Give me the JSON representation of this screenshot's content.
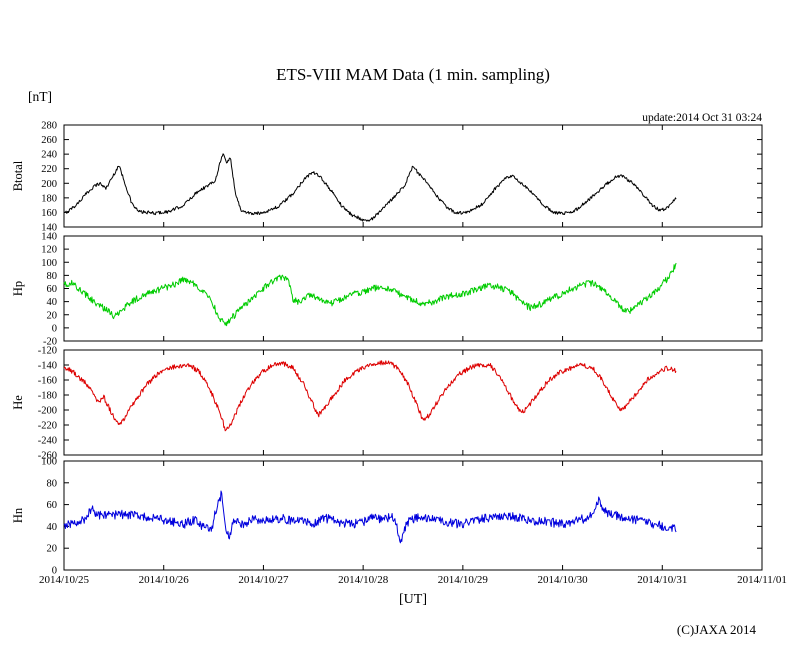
{
  "title": "ETS-VIII MAM Data (1 min. sampling)",
  "unit_label": "[nT]",
  "update_text": "update:2014 Oct 31 03:24",
  "xlabel": "[UT]",
  "copyright": "(C)JAXA 2014",
  "chart_data": {
    "type": "line",
    "title": "ETS-VIII MAM Data (1 min. sampling)",
    "x_axis_label": "[UT]",
    "x_tick_labels": [
      "2014/10/25",
      "2014/10/26",
      "2014/10/27",
      "2014/10/28",
      "2014/10/29",
      "2014/10/30",
      "2014/10/31",
      "2014/11/01"
    ],
    "x_range_days": [
      0,
      7
    ],
    "x_data_end_days": 6.14,
    "grid": false,
    "legend": "none",
    "panels": [
      {
        "name": "Btotal",
        "color": "#000000",
        "ylim": [
          140,
          280
        ],
        "yticks": [
          280,
          260,
          240,
          220,
          200,
          180,
          160,
          140
        ],
        "noise": 2.2,
        "keypoints": [
          [
            0,
            158
          ],
          [
            0.12,
            170
          ],
          [
            0.22,
            185
          ],
          [
            0.3,
            196
          ],
          [
            0.36,
            200
          ],
          [
            0.42,
            193
          ],
          [
            0.5,
            212
          ],
          [
            0.55,
            225
          ],
          [
            0.6,
            205
          ],
          [
            0.68,
            172
          ],
          [
            0.75,
            161
          ],
          [
            0.9,
            159
          ],
          [
            1.05,
            161
          ],
          [
            1.2,
            170
          ],
          [
            1.35,
            190
          ],
          [
            1.45,
            197
          ],
          [
            1.52,
            205
          ],
          [
            1.57,
            232
          ],
          [
            1.6,
            240
          ],
          [
            1.63,
            228
          ],
          [
            1.67,
            235
          ],
          [
            1.72,
            185
          ],
          [
            1.78,
            162
          ],
          [
            1.9,
            158
          ],
          [
            2.0,
            160
          ],
          [
            2.15,
            168
          ],
          [
            2.3,
            186
          ],
          [
            2.42,
            208
          ],
          [
            2.5,
            215
          ],
          [
            2.58,
            207
          ],
          [
            2.68,
            190
          ],
          [
            2.78,
            170
          ],
          [
            2.88,
            157
          ],
          [
            3.0,
            150
          ],
          [
            3.06,
            148
          ],
          [
            3.18,
            162
          ],
          [
            3.3,
            180
          ],
          [
            3.42,
            198
          ],
          [
            3.5,
            224
          ],
          [
            3.55,
            214
          ],
          [
            3.63,
            202
          ],
          [
            3.73,
            184
          ],
          [
            3.83,
            168
          ],
          [
            3.93,
            159
          ],
          [
            4.05,
            160
          ],
          [
            4.2,
            172
          ],
          [
            4.32,
            192
          ],
          [
            4.42,
            206
          ],
          [
            4.5,
            210
          ],
          [
            4.6,
            198
          ],
          [
            4.7,
            186
          ],
          [
            4.8,
            171
          ],
          [
            4.9,
            161
          ],
          [
            5.0,
            158
          ],
          [
            5.12,
            162
          ],
          [
            5.25,
            176
          ],
          [
            5.4,
            194
          ],
          [
            5.52,
            208
          ],
          [
            5.6,
            210
          ],
          [
            5.7,
            200
          ],
          [
            5.8,
            186
          ],
          [
            5.9,
            170
          ],
          [
            5.98,
            162
          ],
          [
            6.06,
            168
          ],
          [
            6.14,
            180
          ]
        ]
      },
      {
        "name": "Hp",
        "color": "#00cc00",
        "ylim": [
          -20,
          140
        ],
        "yticks": [
          140,
          120,
          100,
          80,
          60,
          40,
          20,
          0,
          -20
        ],
        "noise": 5,
        "keypoints": [
          [
            0,
            65
          ],
          [
            0.08,
            68
          ],
          [
            0.18,
            55
          ],
          [
            0.3,
            40
          ],
          [
            0.42,
            28
          ],
          [
            0.5,
            18
          ],
          [
            0.58,
            28
          ],
          [
            0.7,
            42
          ],
          [
            0.82,
            52
          ],
          [
            0.95,
            58
          ],
          [
            1.1,
            66
          ],
          [
            1.2,
            74
          ],
          [
            1.3,
            68
          ],
          [
            1.4,
            55
          ],
          [
            1.5,
            35
          ],
          [
            1.56,
            12
          ],
          [
            1.62,
            6
          ],
          [
            1.68,
            15
          ],
          [
            1.78,
            30
          ],
          [
            1.9,
            48
          ],
          [
            2.0,
            60
          ],
          [
            2.1,
            72
          ],
          [
            2.18,
            78
          ],
          [
            2.25,
            70
          ],
          [
            2.3,
            42
          ],
          [
            2.38,
            38
          ],
          [
            2.45,
            52
          ],
          [
            2.52,
            48
          ],
          [
            2.6,
            42
          ],
          [
            2.7,
            38
          ],
          [
            2.8,
            45
          ],
          [
            2.9,
            52
          ],
          [
            3.0,
            55
          ],
          [
            3.1,
            60
          ],
          [
            3.2,
            62
          ],
          [
            3.3,
            58
          ],
          [
            3.4,
            48
          ],
          [
            3.5,
            42
          ],
          [
            3.6,
            36
          ],
          [
            3.7,
            40
          ],
          [
            3.8,
            46
          ],
          [
            3.9,
            50
          ],
          [
            4.0,
            52
          ],
          [
            4.1,
            57
          ],
          [
            4.2,
            62
          ],
          [
            4.3,
            64
          ],
          [
            4.4,
            60
          ],
          [
            4.5,
            52
          ],
          [
            4.6,
            38
          ],
          [
            4.68,
            30
          ],
          [
            4.78,
            36
          ],
          [
            4.9,
            45
          ],
          [
            5.0,
            52
          ],
          [
            5.1,
            60
          ],
          [
            5.2,
            66
          ],
          [
            5.3,
            68
          ],
          [
            5.4,
            58
          ],
          [
            5.5,
            44
          ],
          [
            5.6,
            30
          ],
          [
            5.66,
            24
          ],
          [
            5.75,
            34
          ],
          [
            5.85,
            46
          ],
          [
            5.95,
            58
          ],
          [
            6.05,
            75
          ],
          [
            6.14,
            97
          ]
        ]
      },
      {
        "name": "He",
        "color": "#dd0000",
        "ylim": [
          -260,
          -120
        ],
        "yticks": [
          -120,
          -140,
          -160,
          -180,
          -200,
          -220,
          -240,
          -260
        ],
        "noise": 3.2,
        "keypoints": [
          [
            0,
            -143
          ],
          [
            0.08,
            -148
          ],
          [
            0.18,
            -160
          ],
          [
            0.28,
            -172
          ],
          [
            0.34,
            -190
          ],
          [
            0.4,
            -183
          ],
          [
            0.48,
            -205
          ],
          [
            0.55,
            -221
          ],
          [
            0.62,
            -208
          ],
          [
            0.72,
            -186
          ],
          [
            0.82,
            -168
          ],
          [
            0.92,
            -154
          ],
          [
            1.05,
            -145
          ],
          [
            1.15,
            -141
          ],
          [
            1.25,
            -140
          ],
          [
            1.35,
            -148
          ],
          [
            1.45,
            -168
          ],
          [
            1.52,
            -190
          ],
          [
            1.57,
            -205
          ],
          [
            1.62,
            -228
          ],
          [
            1.66,
            -222
          ],
          [
            1.72,
            -205
          ],
          [
            1.8,
            -182
          ],
          [
            1.9,
            -162
          ],
          [
            2.0,
            -148
          ],
          [
            2.1,
            -140
          ],
          [
            2.2,
            -138
          ],
          [
            2.3,
            -144
          ],
          [
            2.4,
            -165
          ],
          [
            2.48,
            -188
          ],
          [
            2.55,
            -207
          ],
          [
            2.62,
            -196
          ],
          [
            2.72,
            -178
          ],
          [
            2.82,
            -160
          ],
          [
            2.95,
            -147
          ],
          [
            3.05,
            -140
          ],
          [
            3.15,
            -137
          ],
          [
            3.25,
            -136
          ],
          [
            3.35,
            -144
          ],
          [
            3.45,
            -165
          ],
          [
            3.55,
            -196
          ],
          [
            3.6,
            -215
          ],
          [
            3.66,
            -207
          ],
          [
            3.74,
            -190
          ],
          [
            3.84,
            -170
          ],
          [
            3.95,
            -153
          ],
          [
            4.08,
            -143
          ],
          [
            4.18,
            -139
          ],
          [
            4.28,
            -141
          ],
          [
            4.38,
            -158
          ],
          [
            4.48,
            -182
          ],
          [
            4.58,
            -204
          ],
          [
            4.64,
            -198
          ],
          [
            4.74,
            -180
          ],
          [
            4.85,
            -162
          ],
          [
            4.97,
            -150
          ],
          [
            5.1,
            -143
          ],
          [
            5.2,
            -140
          ],
          [
            5.3,
            -144
          ],
          [
            5.4,
            -160
          ],
          [
            5.5,
            -184
          ],
          [
            5.58,
            -200
          ],
          [
            5.65,
            -193
          ],
          [
            5.75,
            -176
          ],
          [
            5.85,
            -160
          ],
          [
            5.95,
            -151
          ],
          [
            6.05,
            -144
          ],
          [
            6.14,
            -148
          ]
        ]
      },
      {
        "name": "Hn",
        "color": "#0000dd",
        "ylim": [
          0,
          100
        ],
        "yticks": [
          100,
          80,
          60,
          40,
          20,
          0
        ],
        "noise": 4.2,
        "keypoints": [
          [
            0,
            42
          ],
          [
            0.1,
            43
          ],
          [
            0.2,
            46
          ],
          [
            0.28,
            56
          ],
          [
            0.33,
            50
          ],
          [
            0.45,
            50
          ],
          [
            0.6,
            51
          ],
          [
            0.75,
            50
          ],
          [
            0.9,
            48
          ],
          [
            1.0,
            46
          ],
          [
            1.1,
            44
          ],
          [
            1.2,
            42
          ],
          [
            1.3,
            46
          ],
          [
            1.4,
            40
          ],
          [
            1.48,
            36
          ],
          [
            1.53,
            58
          ],
          [
            1.58,
            70
          ],
          [
            1.62,
            40
          ],
          [
            1.66,
            28
          ],
          [
            1.7,
            46
          ],
          [
            1.8,
            42
          ],
          [
            1.9,
            46
          ],
          [
            2.0,
            45
          ],
          [
            2.1,
            47
          ],
          [
            2.2,
            48
          ],
          [
            2.3,
            44
          ],
          [
            2.4,
            46
          ],
          [
            2.5,
            42
          ],
          [
            2.6,
            48
          ],
          [
            2.7,
            46
          ],
          [
            2.8,
            43
          ],
          [
            2.9,
            42
          ],
          [
            3.0,
            44
          ],
          [
            3.1,
            48
          ],
          [
            3.2,
            46
          ],
          [
            3.3,
            50
          ],
          [
            3.38,
            26
          ],
          [
            3.44,
            44
          ],
          [
            3.55,
            48
          ],
          [
            3.7,
            46
          ],
          [
            3.85,
            44
          ],
          [
            4.0,
            42
          ],
          [
            4.15,
            46
          ],
          [
            4.3,
            49
          ],
          [
            4.45,
            50
          ],
          [
            4.55,
            48
          ],
          [
            4.7,
            45
          ],
          [
            4.85,
            44
          ],
          [
            5.0,
            42
          ],
          [
            5.15,
            45
          ],
          [
            5.3,
            50
          ],
          [
            5.36,
            65
          ],
          [
            5.42,
            54
          ],
          [
            5.55,
            50
          ],
          [
            5.7,
            47
          ],
          [
            5.85,
            44
          ],
          [
            6.0,
            40
          ],
          [
            6.14,
            38
          ]
        ]
      }
    ]
  }
}
